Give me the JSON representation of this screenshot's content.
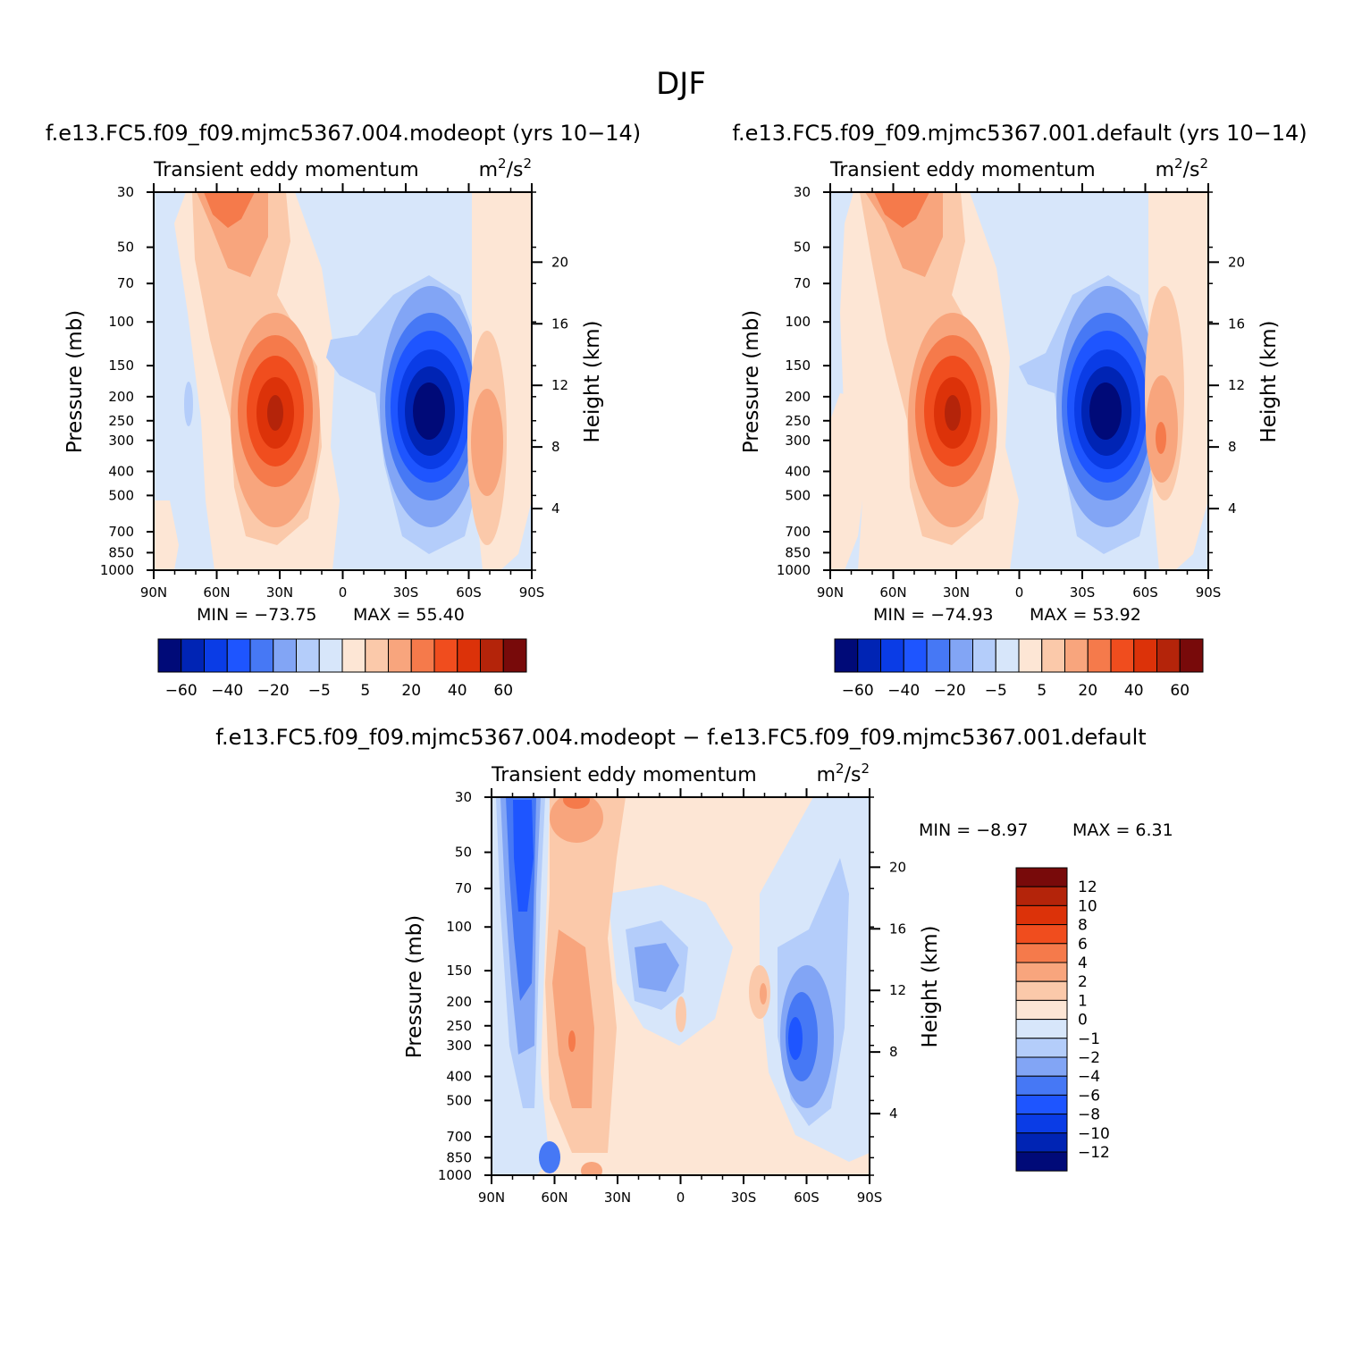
{
  "figure": {
    "season": "DJF",
    "colors": {
      "neg6": "#000a78",
      "neg5": "#0024b4",
      "neg4": "#0a3ce6",
      "neg3": "#1e55ff",
      "neg2": "#4678f5",
      "neg1": "#82a5f5",
      "neg05": "#b4cdfa",
      "neg0": "#d7e6fa",
      "pos0": "#fde6d5",
      "pos05": "#fbc9aa",
      "pos1": "#f8a57d",
      "pos2": "#f57a4b",
      "pos3": "#f04d1e",
      "pos4": "#dc3209",
      "pos5": "#b4240a",
      "pos6": "#780a0a",
      "frame": "#000000"
    }
  },
  "chart_data": [
    {
      "type": "contour",
      "id": "panel-a",
      "run_title": "f.e13.FC5.f09_f09.mjmc5367.004.modeopt (yrs 10-14)",
      "title": "Transient eddy momentum",
      "units": "m²/s²",
      "units_base": "m",
      "units_exp1": "2",
      "units_mid": "/s",
      "units_exp2": "2",
      "xlabel": "",
      "ylabel": "Pressure (mb)",
      "y2label": "Height (km)",
      "x_ticks": [
        "90N",
        "60N",
        "30N",
        "0",
        "30S",
        "60S",
        "90S"
      ],
      "x_values": [
        90,
        60,
        30,
        0,
        -30,
        -60,
        -90
      ],
      "xlim": [
        90,
        -90
      ],
      "y_ticks": [
        "30",
        "50",
        "70",
        "100",
        "150",
        "200",
        "250",
        "300",
        "400",
        "500",
        "700",
        "850",
        "1000"
      ],
      "y_values": [
        30,
        50,
        70,
        100,
        150,
        200,
        250,
        300,
        400,
        500,
        700,
        850,
        1000
      ],
      "ylim": [
        1000,
        30
      ],
      "y2_ticks": [
        "4",
        "8",
        "12",
        "16",
        "20"
      ],
      "y2_values": [
        4,
        8,
        12,
        16,
        20
      ],
      "min_label": "MIN = -73.75",
      "max_label": "MAX = 55.40",
      "min": -73.75,
      "max": 55.4,
      "levels": [
        -70,
        -60,
        -50,
        -40,
        -30,
        -20,
        -10,
        -5,
        0,
        5,
        10,
        20,
        30,
        40,
        50,
        60,
        70
      ],
      "colorbar_labels": [
        "-60",
        "-40",
        "-20",
        "-5",
        "5",
        "20",
        "40",
        "60"
      ],
      "features": [
        {
          "kind": "jet",
          "sign": "positive",
          "lat": 30,
          "pressure": 250,
          "peak": 55.4
        },
        {
          "kind": "jet",
          "sign": "negative",
          "lat": -43,
          "pressure": 250,
          "peak": -73.75
        },
        {
          "kind": "jet",
          "sign": "positive",
          "lat": 60,
          "pressure": 30,
          "peak": 25
        },
        {
          "kind": "jet",
          "sign": "positive",
          "lat": -68,
          "pressure": 300,
          "peak": 18
        }
      ]
    },
    {
      "type": "contour",
      "id": "panel-b",
      "run_title": "f.e13.FC5.f09_f09.mjmc5367.001.default (yrs 10-14)",
      "title": "Transient eddy momentum",
      "units": "m²/s²",
      "units_base": "m",
      "units_exp1": "2",
      "units_mid": "/s",
      "units_exp2": "2",
      "xlabel": "",
      "ylabel": "Pressure (mb)",
      "y2label": "Height (km)",
      "x_ticks": [
        "90N",
        "60N",
        "30N",
        "0",
        "30S",
        "60S",
        "90S"
      ],
      "x_values": [
        90,
        60,
        30,
        0,
        -30,
        -60,
        -90
      ],
      "xlim": [
        90,
        -90
      ],
      "y_ticks": [
        "30",
        "50",
        "70",
        "100",
        "150",
        "200",
        "250",
        "300",
        "400",
        "500",
        "700",
        "850",
        "1000"
      ],
      "y_values": [
        30,
        50,
        70,
        100,
        150,
        200,
        250,
        300,
        400,
        500,
        700,
        850,
        1000
      ],
      "ylim": [
        1000,
        30
      ],
      "y2_ticks": [
        "4",
        "8",
        "12",
        "16",
        "20"
      ],
      "y2_values": [
        4,
        8,
        12,
        16,
        20
      ],
      "min_label": "MIN = -74.93",
      "max_label": "MAX = 53.92",
      "min": -74.93,
      "max": 53.92,
      "levels": [
        -70,
        -60,
        -50,
        -40,
        -30,
        -20,
        -10,
        -5,
        0,
        5,
        10,
        20,
        30,
        40,
        50,
        60,
        70
      ],
      "colorbar_labels": [
        "-60",
        "-40",
        "-20",
        "-5",
        "5",
        "20",
        "40",
        "60"
      ],
      "features": [
        {
          "kind": "jet",
          "sign": "positive",
          "lat": 30,
          "pressure": 250,
          "peak": 53.92
        },
        {
          "kind": "jet",
          "sign": "negative",
          "lat": -43,
          "pressure": 250,
          "peak": -74.93
        },
        {
          "kind": "jet",
          "sign": "positive",
          "lat": 60,
          "pressure": 30,
          "peak": 25
        },
        {
          "kind": "jet",
          "sign": "positive",
          "lat": -68,
          "pressure": 300,
          "peak": 25
        }
      ]
    },
    {
      "type": "contour",
      "id": "panel-diff",
      "run_title": "f.e13.FC5.f09_f09.mjmc5367.004.modeopt - f.e13.FC5.f09_f09.mjmc5367.001.default",
      "title": "Transient eddy momentum",
      "units": "m²/s²",
      "units_base": "m",
      "units_exp1": "2",
      "units_mid": "/s",
      "units_exp2": "2",
      "xlabel": "",
      "ylabel": "Pressure (mb)",
      "y2label": "Height (km)",
      "x_ticks": [
        "90N",
        "60N",
        "30N",
        "0",
        "30S",
        "60S",
        "90S"
      ],
      "x_values": [
        90,
        60,
        30,
        0,
        -30,
        -60,
        -90
      ],
      "xlim": [
        90,
        -90
      ],
      "y_ticks": [
        "30",
        "50",
        "70",
        "100",
        "150",
        "200",
        "250",
        "300",
        "400",
        "500",
        "700",
        "850",
        "1000"
      ],
      "y_values": [
        30,
        50,
        70,
        100,
        150,
        200,
        250,
        300,
        400,
        500,
        700,
        850,
        1000
      ],
      "ylim": [
        1000,
        30
      ],
      "y2_ticks": [
        "4",
        "8",
        "12",
        "16",
        "20"
      ],
      "y2_values": [
        4,
        8,
        12,
        16,
        20
      ],
      "min_label": "MIN = -8.97",
      "max_label": "MAX = 6.31",
      "min": -8.97,
      "max": 6.31,
      "levels": [
        -12,
        -10,
        -8,
        -6,
        -4,
        -2,
        -1,
        0,
        1,
        2,
        4,
        6,
        8,
        10,
        12
      ],
      "colorbar_labels": [
        "12",
        "10",
        "8",
        "6",
        "4",
        "2",
        "1",
        "0",
        "-1",
        "-2",
        "-4",
        "-6",
        "-8",
        "-10",
        "-12"
      ],
      "features": [
        {
          "kind": "band",
          "sign": "negative",
          "lat": 73,
          "pressure": 200,
          "peak": -8.97
        },
        {
          "kind": "band",
          "sign": "positive",
          "lat": 50,
          "pressure": 300,
          "peak": 6.31
        },
        {
          "kind": "blob",
          "sign": "negative",
          "lat": -58,
          "pressure": 300,
          "peak": -7
        },
        {
          "kind": "blob",
          "sign": "negative",
          "lat": 10,
          "pressure": 130,
          "peak": -3
        }
      ]
    }
  ]
}
